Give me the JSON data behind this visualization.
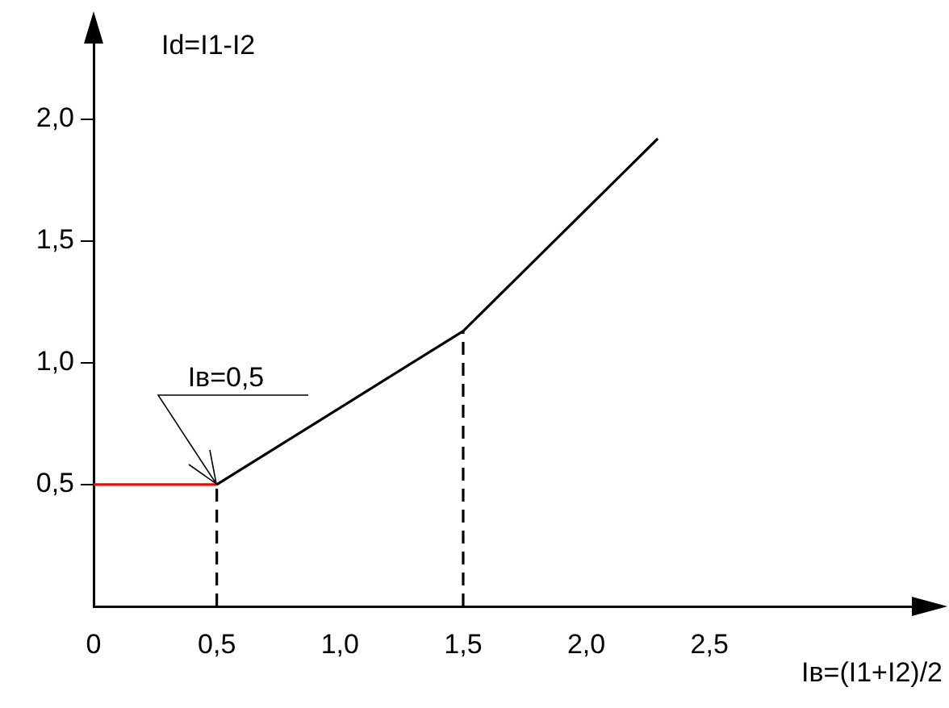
{
  "chart_data": {
    "type": "line",
    "xlabel": "Iв=(I1+I2)/2",
    "ylabel": "Id=I1-I2",
    "xlim": [
      0,
      3.4
    ],
    "ylim": [
      0,
      2.35
    ],
    "xticks": [
      {
        "value": 0,
        "label": "0"
      },
      {
        "value": 0.5,
        "label": "0,5"
      },
      {
        "value": 1,
        "label": "1,0"
      },
      {
        "value": 1.5,
        "label": "1,5"
      },
      {
        "value": 2,
        "label": "2,0"
      },
      {
        "value": 2.5,
        "label": "2,5"
      }
    ],
    "yticks": [
      {
        "value": 0.5,
        "label": "0,5"
      },
      {
        "value": 1,
        "label": "1,0"
      },
      {
        "value": 1.5,
        "label": "1,5"
      },
      {
        "value": 2,
        "label": "2,0"
      }
    ],
    "grid": false,
    "legend": false,
    "marker": "none",
    "series": [
      {
        "color": "#000000",
        "x": [
          0.5,
          1.5,
          2.29
        ],
        "values": [
          0.5,
          1.13,
          1.92
        ],
        "line_style": "solid"
      },
      {
        "color": "#ff0000",
        "x": [
          0,
          0.5
        ],
        "values": [
          0.5,
          0.5
        ],
        "line_style": "solid"
      },
      {
        "color": "#000000",
        "x": [
          0.5,
          0.5
        ],
        "values": [
          0,
          0.5
        ],
        "line_style": "dashed"
      },
      {
        "color": "#000000",
        "x": [
          1.5,
          1.5
        ],
        "values": [
          0,
          1.13
        ],
        "line_style": "dashed"
      }
    ],
    "annotations": [
      {
        "text": "Iв=0,5",
        "x": 0.5,
        "y": 0.5
      }
    ]
  }
}
